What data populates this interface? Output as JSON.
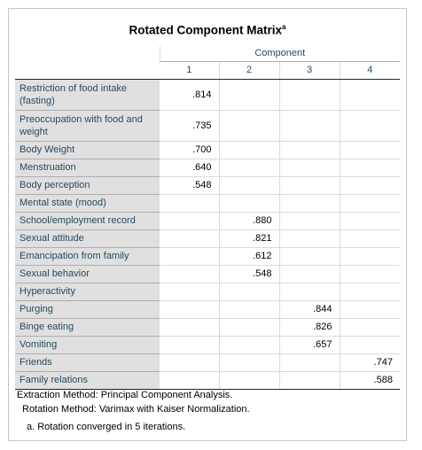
{
  "title": "Rotated Component Matrix",
  "title_sup": "a",
  "header": {
    "group_label": "Component",
    "columns": [
      "1",
      "2",
      "3",
      "4"
    ]
  },
  "rows": [
    {
      "label": "Restriction of food intake (fasting)",
      "values": [
        ".814",
        "",
        "",
        ""
      ]
    },
    {
      "label": "Preoccupation with food and weight",
      "values": [
        ".735",
        "",
        "",
        ""
      ]
    },
    {
      "label": "Body Weight",
      "values": [
        ".700",
        "",
        "",
        ""
      ]
    },
    {
      "label": "Menstruation",
      "values": [
        ".640",
        "",
        "",
        ""
      ]
    },
    {
      "label": "Body perception",
      "values": [
        ".548",
        "",
        "",
        ""
      ]
    },
    {
      "label": "Mental state (mood)",
      "values": [
        "",
        "",
        "",
        ""
      ]
    },
    {
      "label": "School/employment record",
      "values": [
        "",
        ".880",
        "",
        ""
      ]
    },
    {
      "label": "Sexual attitude",
      "values": [
        "",
        ".821",
        "",
        ""
      ]
    },
    {
      "label": "Emancipation from family",
      "values": [
        "",
        ".612",
        "",
        ""
      ]
    },
    {
      "label": "Sexual behavior",
      "values": [
        "",
        ".548",
        "",
        ""
      ]
    },
    {
      "label": "Hyperactivity",
      "values": [
        "",
        "",
        "",
        ""
      ]
    },
    {
      "label": "Purging",
      "values": [
        "",
        "",
        ".844",
        ""
      ]
    },
    {
      "label": "Binge eating",
      "values": [
        "",
        "",
        ".826",
        ""
      ]
    },
    {
      "label": "Vomiting",
      "values": [
        "",
        "",
        ".657",
        ""
      ]
    },
    {
      "label": "Friends",
      "values": [
        "",
        "",
        "",
        ".747"
      ]
    },
    {
      "label": "Family relations",
      "values": [
        "",
        "",
        "",
        ".588"
      ]
    }
  ],
  "footnotes": {
    "extraction": "Extraction Method: Principal Component Analysis.",
    "rotation": "Rotation Method: Varimax with Kaiser Normalization.",
    "note_a": "a. Rotation converged in 5 iterations."
  }
}
